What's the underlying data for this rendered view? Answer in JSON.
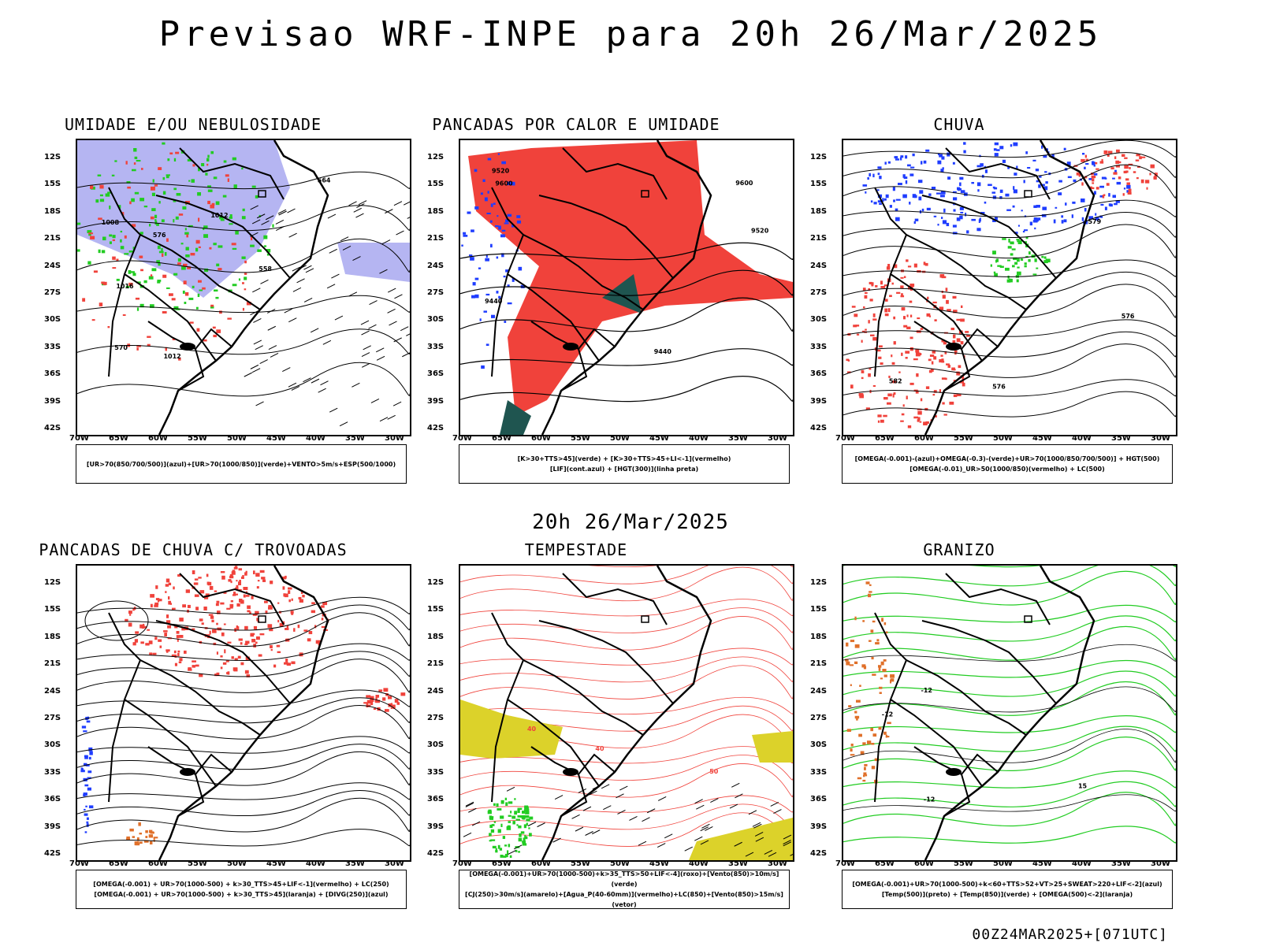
{
  "header": {
    "title": "Previsao WRF-INPE  para 20h 26/Mar/2025"
  },
  "middle_label": "20h 26/Mar/2025",
  "footer": "00Z24MAR2025+[071UTC]",
  "axes": {
    "lat_labels": [
      "12S",
      "15S",
      "18S",
      "21S",
      "24S",
      "27S",
      "30S",
      "33S",
      "36S",
      "39S",
      "42S"
    ],
    "lon_labels": [
      "70W",
      "65W",
      "60W",
      "55W",
      "50W",
      "45W",
      "40W",
      "35W",
      "30W"
    ]
  },
  "colors": {
    "red": "#f0423b",
    "green": "#22cc22",
    "blue": "#1f3dff",
    "lavender": "#b5b5f2",
    "yellow": "#dcd22a",
    "orange": "#e0702a",
    "darkteal": "#1f5550"
  },
  "panels": [
    {
      "title": "UMIDADE E/OU NEBULOSIDADE",
      "legend": [
        "[UR>70(850/700/500)](azul)+[UR>70(1000/850)](verde)+VENTO>5m/s+ESP(500/1000)"
      ],
      "contour_labels": [
        "1008",
        "1012",
        "1016",
        "1012",
        "576",
        "570",
        "564",
        "558"
      ]
    },
    {
      "title": "PANCADAS POR CALOR E UMIDADE",
      "legend": [
        "[K>30+TTS>45](verde) + [K>30+TTS>45+LI<-1](vermelho)",
        "[LIF](cont.azul) + [HGT(300)](linha preta)"
      ],
      "contour_labels": [
        "9600",
        "9520",
        "9440",
        "9600",
        "9520",
        "9440"
      ]
    },
    {
      "title": "CHUVA",
      "legend": [
        "[OMEGA(-0.001)-(azul)+OMEGA(-0.3)-(verde)+UR>70(1000/850/700/500)] + HGT(500)",
        "[OMEGA(-0.01)_UR>50(1000/850)(vermelho) + LC(500)"
      ],
      "contour_labels": [
        "582",
        "579",
        "576",
        "576"
      ]
    },
    {
      "title": "PANCADAS DE CHUVA C/ TROVOADAS",
      "legend": [
        "[OMEGA(-0.001) + UR>70(1000-500) + k>30_TTS>45+LIF<-1](vermelho) + LC(250)",
        "[OMEGA(-0.001) + UR>70(1000-500) + k>30_TTS>45](laranja) + [DIVG(250)](azul)"
      ],
      "contour_labels": []
    },
    {
      "title": "TEMPESTADE",
      "legend": [
        "[OMEGA(-0.001)+UR>70(1000-500)+k>35_TTS>50+LIF<-4](roxo)+[Vento(850)>10m/s](verde)",
        "[CJ(250)>30m/s](amarelo)+[Agua_P(40-60mm)](vermelho)+LC(850)+[Vento(850)>15m/s](vetor)"
      ],
      "contour_labels": [
        "40",
        "40",
        "50"
      ]
    },
    {
      "title": "GRANIZO",
      "legend": [
        "[OMEGA(-0.001)+UR>70(1000-500)+k<60+TTS>52+VT>25+SWEAT>220+LIF<-2](azul)",
        "[Temp(500)](preto) + [Temp(850)](verde) + [OMEGA(500)<-2](laranja)"
      ],
      "contour_labels": [
        "-12",
        "-12",
        "15",
        "-12"
      ]
    }
  ]
}
